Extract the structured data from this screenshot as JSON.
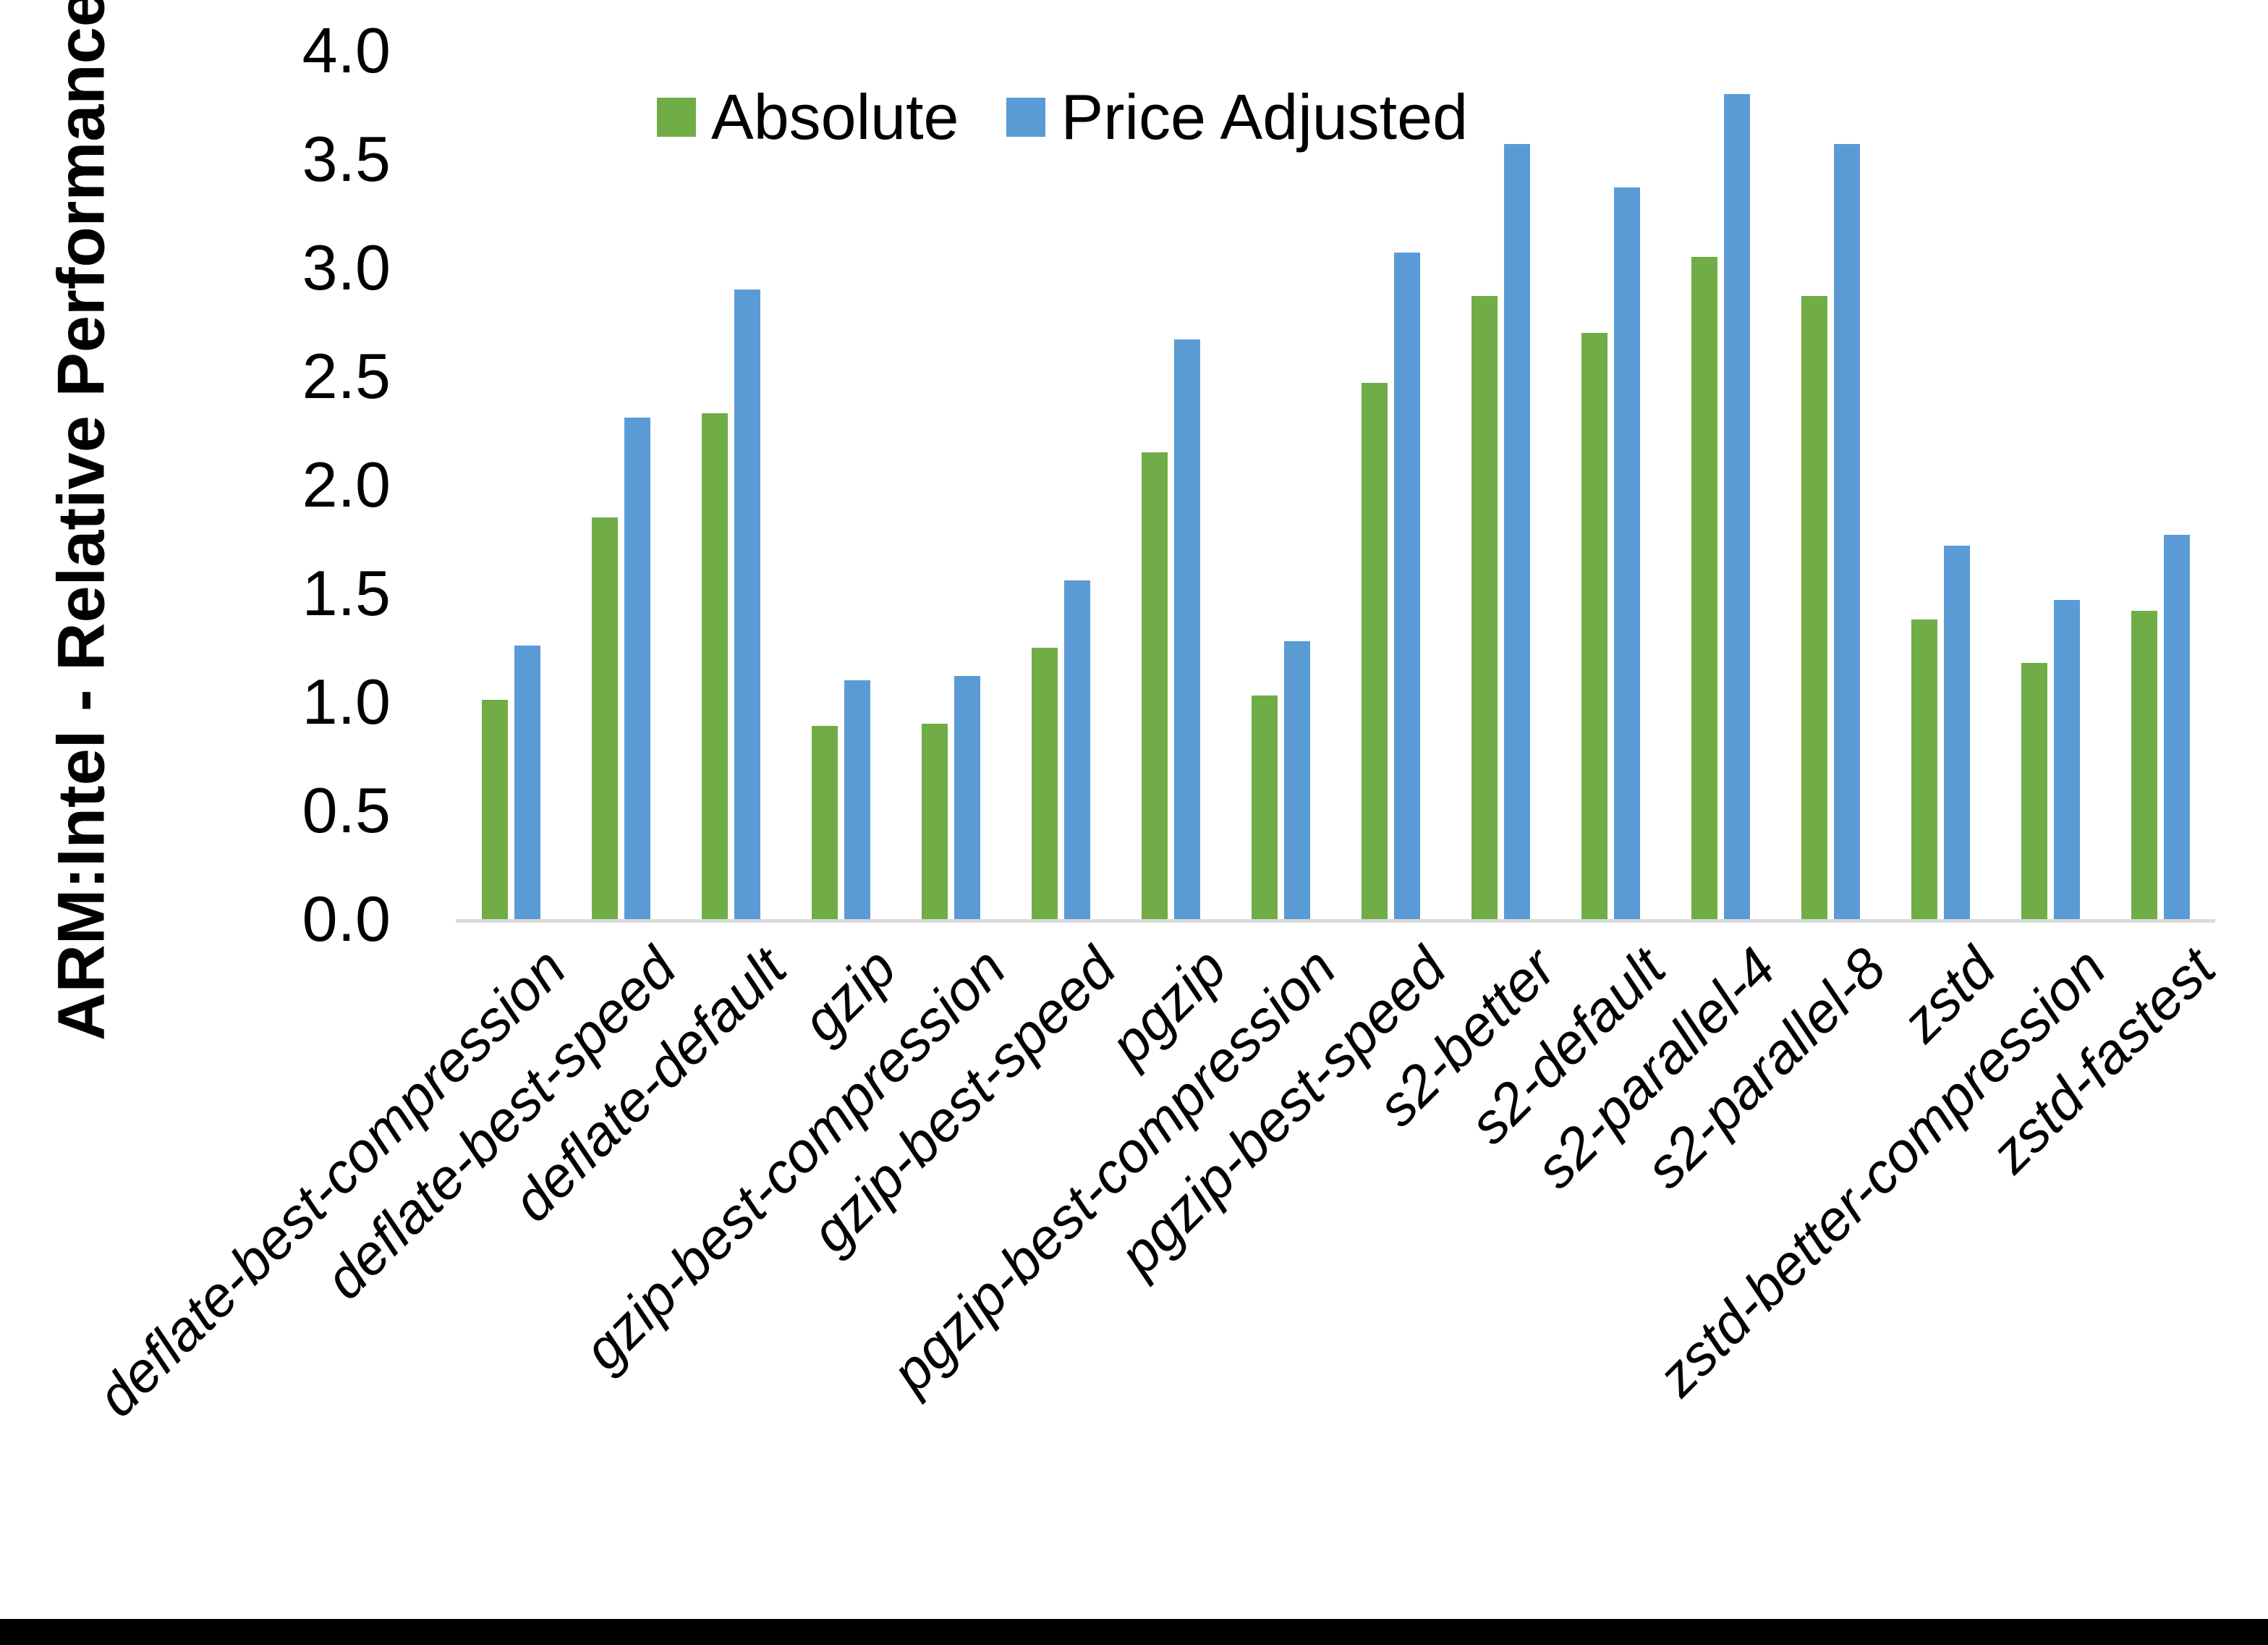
{
  "chart_data": {
    "type": "bar",
    "title": "",
    "xlabel": "",
    "ylabel": "ARM:Intel - Relative Performance",
    "ylim": [
      0.0,
      4.0
    ],
    "ytick_step": 0.5,
    "yticks": [
      "0.0",
      "0.5",
      "1.0",
      "1.5",
      "2.0",
      "2.5",
      "3.0",
      "3.5",
      "4.0"
    ],
    "grid": false,
    "legend_position": "top-center",
    "categories": [
      "deflate-best-compression",
      "deflate-best-speed",
      "deflate-default",
      "gzip",
      "gzip-best-compression",
      "gzip-best-speed",
      "pgzip",
      "pgzip-best-compression",
      "pgzip-best-speed",
      "s2-better",
      "s2-default",
      "s2-parallel-4",
      "s2-parallel-8",
      "zstd",
      "zstd-better-compression",
      "zstd-fastest"
    ],
    "series": [
      {
        "name": "Absolute",
        "color": "#70AD47",
        "values": [
          1.01,
          1.85,
          2.33,
          0.89,
          0.9,
          1.25,
          2.15,
          1.03,
          2.47,
          2.87,
          2.7,
          3.05,
          2.87,
          1.38,
          1.18,
          1.42
        ]
      },
      {
        "name": "Price Adjusted",
        "color": "#5B9BD5",
        "values": [
          1.26,
          2.31,
          2.9,
          1.1,
          1.12,
          1.56,
          2.67,
          1.28,
          3.07,
          3.57,
          3.37,
          3.8,
          3.57,
          1.72,
          1.47,
          1.77
        ]
      }
    ],
    "colors": {
      "axis_line": "#D9D9D9",
      "text": "#000000",
      "background": "#FFFFFF",
      "bottom_border": "#000000"
    }
  }
}
